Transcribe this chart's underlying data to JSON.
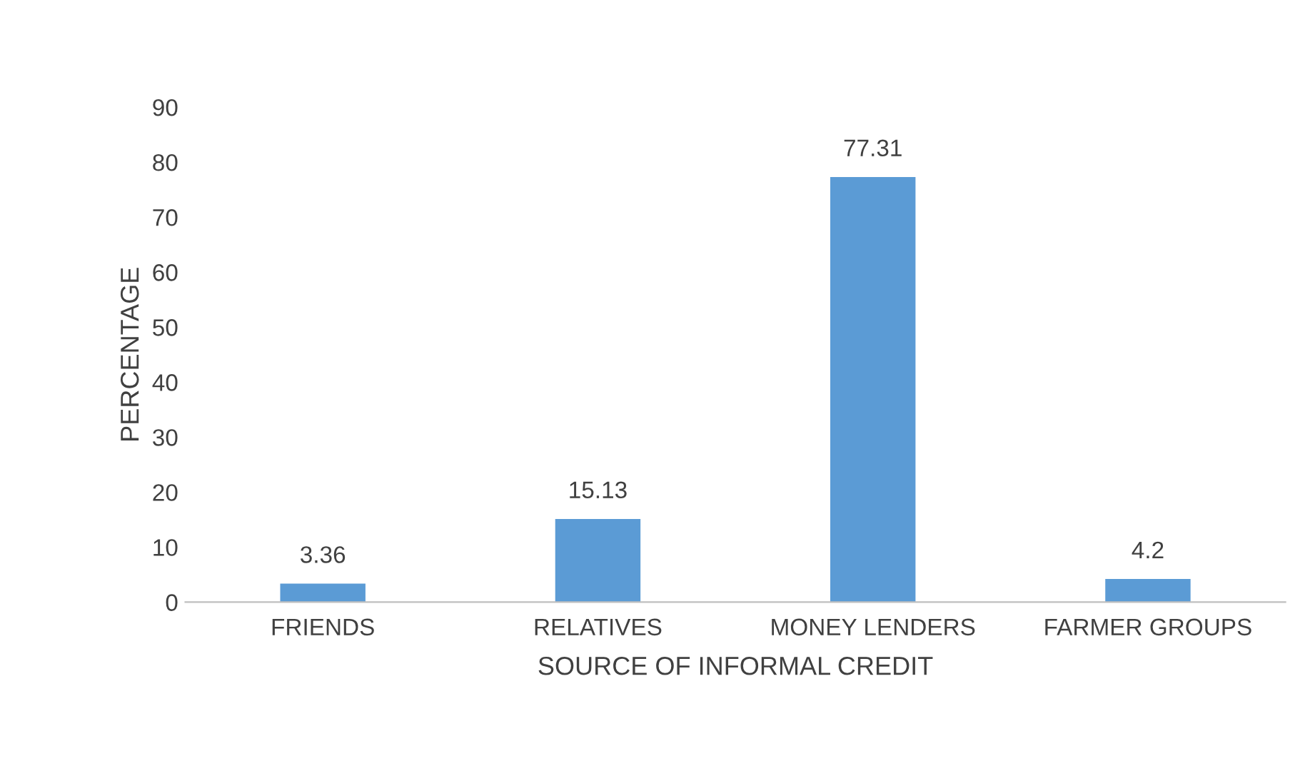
{
  "chart_data": {
    "type": "bar",
    "xlabel": "SOURCE OF INFORMAL CREDIT",
    "ylabel": "PERCENTAGE",
    "categories": [
      "FRIENDS",
      "RELATIVES",
      "MONEY LENDERS",
      "FARMER GROUPS"
    ],
    "values": [
      3.36,
      15.13,
      77.31,
      4.2
    ],
    "color": "#5b9bd5",
    "ylim": [
      0,
      90
    ],
    "yticks": [
      0,
      10,
      20,
      30,
      40,
      50,
      60,
      70,
      80,
      90
    ],
    "grid": false,
    "data_labels": true
  }
}
